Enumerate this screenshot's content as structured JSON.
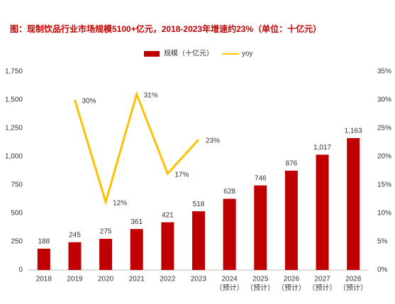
{
  "chart_data": {
    "type": "bar",
    "title": "图：现制饮品行业市场规模5100+亿元，2018-2023年增速约23%（单位：十亿元）",
    "categories": [
      [
        "2018"
      ],
      [
        "2019"
      ],
      [
        "2020"
      ],
      [
        "2021"
      ],
      [
        "2022"
      ],
      [
        "2023"
      ],
      [
        "2024",
        "（预计）"
      ],
      [
        "2025",
        "（预计）"
      ],
      [
        "2026",
        "（预计）"
      ],
      [
        "2027",
        "（预计）"
      ],
      [
        "2028",
        "（预计）"
      ]
    ],
    "series": [
      {
        "name": "规模（十亿元）",
        "color": "#c00000",
        "type": "bar",
        "values": [
          188,
          245,
          275,
          361,
          421,
          518,
          628,
          746,
          876,
          1017,
          1163
        ],
        "value_labels": [
          "188",
          "245",
          "275",
          "361",
          "421",
          "518",
          "628",
          "746",
          "876",
          "1,017",
          "1,163"
        ]
      },
      {
        "name": "yoy",
        "color": "#ffc000",
        "type": "line",
        "axis": "y2",
        "values": [
          null,
          30,
          12,
          31,
          17,
          23,
          null,
          null,
          null,
          null,
          null
        ],
        "value_labels": [
          null,
          "30%",
          "12%",
          "31%",
          "17%",
          "23%",
          null,
          null,
          null,
          null,
          null
        ]
      }
    ],
    "ylim": [
      0,
      1750
    ],
    "yticks": [
      0,
      250,
      500,
      750,
      {
        "value": 1000,
        "label": "1,000"
      },
      {
        "value": 1250,
        "label": "1,250"
      },
      {
        "value": 1500,
        "label": "1,500"
      },
      {
        "value": 1750,
        "label": "1,750"
      }
    ],
    "y2lim": [
      0,
      35
    ],
    "y2ticks": [
      {
        "value": 0,
        "label": "0%"
      },
      {
        "value": 5,
        "label": "5%"
      },
      {
        "value": 10,
        "label": "10%"
      },
      {
        "value": 15,
        "label": "15%"
      },
      {
        "value": 20,
        "label": "20%"
      },
      {
        "value": 25,
        "label": "25%"
      },
      {
        "value": 30,
        "label": "30%"
      },
      {
        "value": 35,
        "label": "35%"
      }
    ],
    "legend": "top"
  }
}
